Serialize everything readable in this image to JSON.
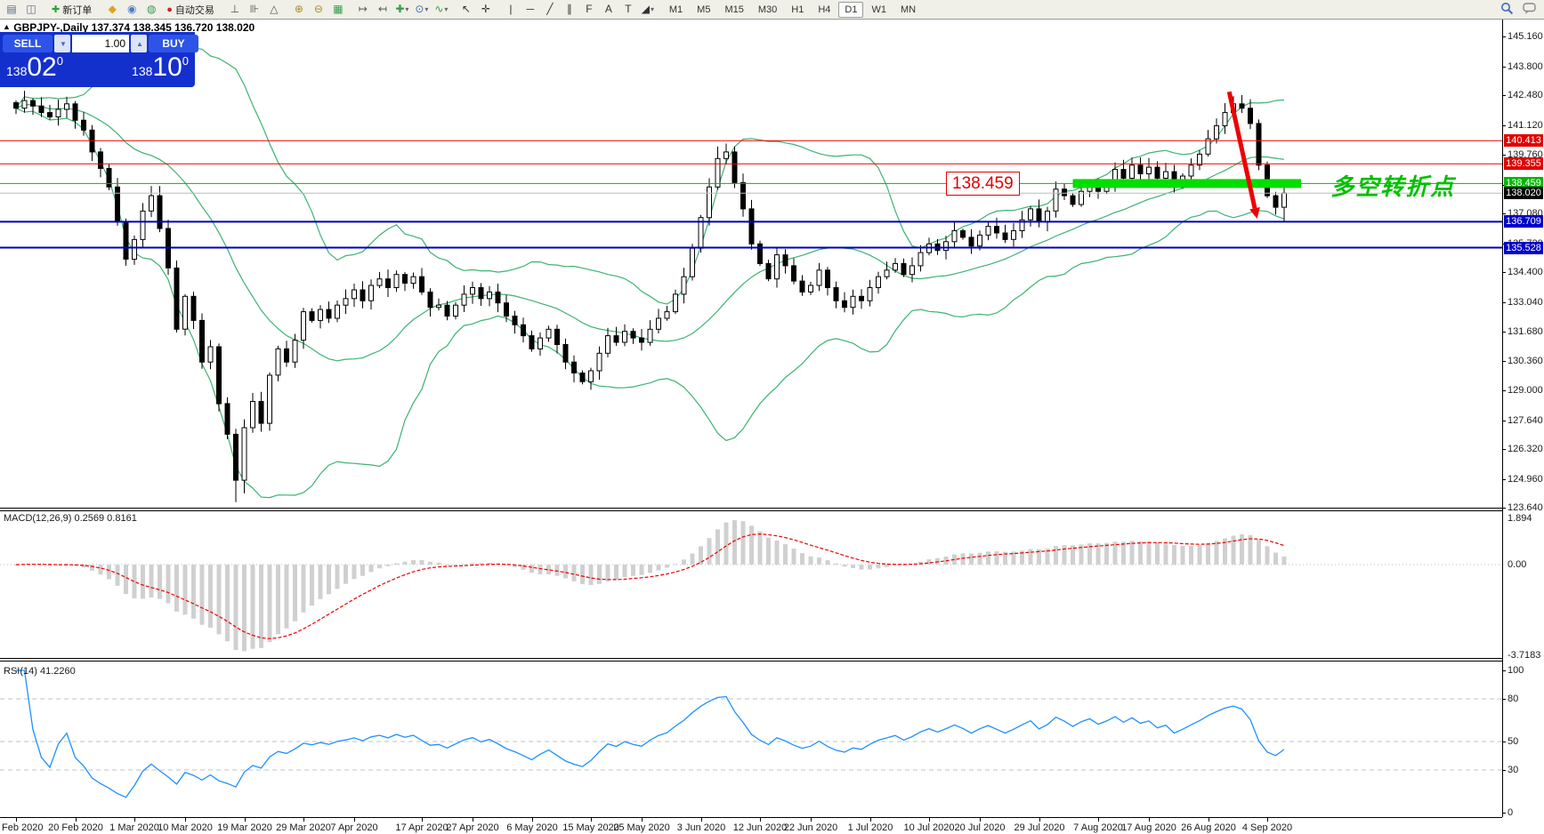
{
  "toolbar": {
    "new_order": "新订单",
    "autotrading": "自动交易",
    "timeframes": [
      "M1",
      "M5",
      "M15",
      "M30",
      "H1",
      "H4",
      "D1",
      "W1",
      "MN"
    ],
    "active_timeframe": "D1",
    "items": [
      {
        "t": "icon",
        "n": "chart-window-icon",
        "g": "▤",
        "c": "#5a6a8a"
      },
      {
        "t": "icon",
        "n": "profile-search-icon",
        "g": "◫",
        "c": "#5a6a8a"
      },
      {
        "t": "sep"
      },
      {
        "t": "btn",
        "n": "new-order-button",
        "key": "new_order",
        "g": "✚",
        "gc": "#2f9e44"
      },
      {
        "t": "sep"
      },
      {
        "t": "icon",
        "n": "market-watch-icon",
        "g": "◆",
        "c": "#d9a520"
      },
      {
        "t": "icon",
        "n": "navigator-icon",
        "g": "◉",
        "c": "#4a7dc9"
      },
      {
        "t": "icon",
        "n": "terminal-icon",
        "g": "◍",
        "c": "#3a9c4f"
      },
      {
        "t": "btn",
        "n": "autotrading-button",
        "key": "autotrading",
        "g": "●",
        "gc": "#cc2222"
      },
      {
        "t": "sep"
      },
      {
        "t": "icon",
        "n": "bar-chart-icon",
        "g": "⊥",
        "c": "#555"
      },
      {
        "t": "icon",
        "n": "candlestick-chart-icon",
        "g": "⊪",
        "c": "#555"
      },
      {
        "t": "icon",
        "n": "line-chart-icon",
        "g": "△",
        "c": "#555"
      },
      {
        "t": "sep"
      },
      {
        "t": "icon",
        "n": "zoom-in-icon",
        "g": "⊕",
        "c": "#b08a20"
      },
      {
        "t": "icon",
        "n": "zoom-out-icon",
        "g": "⊖",
        "c": "#b08a20"
      },
      {
        "t": "icon",
        "n": "tile-windows-icon",
        "g": "▦",
        "c": "#3a9c4f"
      },
      {
        "t": "sep"
      },
      {
        "t": "icon",
        "n": "auto-scroll-icon",
        "g": "↦",
        "c": "#555"
      },
      {
        "t": "icon",
        "n": "chart-shift-icon",
        "g": "↤",
        "c": "#555"
      },
      {
        "t": "icon",
        "n": "add-indicator-icon",
        "g": "✚",
        "c": "#2f9e44",
        "caret": true
      },
      {
        "t": "icon",
        "n": "period-icon",
        "g": "⊙",
        "c": "#3a6abf",
        "caret": true
      },
      {
        "t": "icon",
        "n": "template-icon",
        "g": "∿",
        "c": "#3a9c4f",
        "caret": true
      },
      {
        "t": "sep"
      },
      {
        "t": "icon",
        "n": "cursor-icon",
        "g": "↖",
        "c": "#333"
      },
      {
        "t": "icon",
        "n": "crosshair-icon",
        "g": "✛",
        "c": "#333"
      },
      {
        "t": "sep"
      },
      {
        "t": "icon",
        "n": "vertical-line-icon",
        "g": "|",
        "c": "#333"
      },
      {
        "t": "icon",
        "n": "horizontal-line-icon",
        "g": "─",
        "c": "#333"
      },
      {
        "t": "icon",
        "n": "trendline-icon",
        "g": "╱",
        "c": "#333"
      },
      {
        "t": "icon",
        "n": "equidistant-channel-icon",
        "g": "∥",
        "c": "#333"
      },
      {
        "t": "icon",
        "n": "fibonacci-icon",
        "g": "F",
        "c": "#333"
      },
      {
        "t": "icon",
        "n": "text-icon",
        "g": "A",
        "c": "#333"
      },
      {
        "t": "icon",
        "n": "text-label-icon",
        "g": "T",
        "c": "#333"
      },
      {
        "t": "icon",
        "n": "arrows-icon",
        "g": "◢",
        "c": "#333",
        "caret": true
      },
      {
        "t": "sep"
      }
    ]
  },
  "trade_panel": {
    "sell_label": "SELL",
    "buy_label": "BUY",
    "volume": "1.00",
    "down_glyph": "▼",
    "up_glyph": "▲",
    "sell_price": {
      "prefix": "138",
      "main": "02",
      "sup": "0"
    },
    "buy_price": {
      "prefix": "138",
      "main": "10",
      "sup": "0"
    }
  },
  "chart_header": {
    "marker": "▲",
    "symbol": "GBPJPY-,Daily",
    "ohlc_text": "137.374 138.345 136.720 138.020"
  },
  "price_axis": {
    "ticks": [
      145.16,
      143.8,
      142.48,
      141.12,
      139.76,
      138.4,
      137.08,
      135.72,
      134.4,
      133.04,
      131.68,
      130.36,
      129.0,
      127.64,
      126.32,
      124.96,
      123.64
    ],
    "badges": [
      {
        "text": "140.413",
        "price": 140.413,
        "bg": "#e00000"
      },
      {
        "text": "139.355",
        "price": 139.355,
        "bg": "#e00000"
      },
      {
        "text": "138.459",
        "price": 138.459,
        "bg": "#00b800"
      },
      {
        "text": "138.020",
        "price": 138.02,
        "bg": "#000000"
      },
      {
        "text": "136.709",
        "price": 136.709,
        "bg": "#0000cc"
      },
      {
        "text": "135.528",
        "price": 135.528,
        "bg": "#0000cc"
      }
    ]
  },
  "indicator_labels": {
    "macd": "MACD(12,26,9) 0.2569 0.8161",
    "rsi": "RSI(14) 41.2260"
  },
  "chart_data": {
    "type": "candlestick",
    "symbol": "GBPJPY-",
    "timeframe": "Daily",
    "last_ohlc": {
      "open": "137.374",
      "high": "138.345",
      "low": "136.720",
      "close": "138.020"
    },
    "closes": [
      141.9,
      142.25,
      142.0,
      141.7,
      141.5,
      141.85,
      142.1,
      141.35,
      140.9,
      139.9,
      139.15,
      138.3,
      136.7,
      135.0,
      135.9,
      137.2,
      137.9,
      136.4,
      134.6,
      131.8,
      133.3,
      132.2,
      130.3,
      131.0,
      128.4,
      127.0,
      124.9,
      127.3,
      128.5,
      127.5,
      129.7,
      130.9,
      130.3,
      131.3,
      132.6,
      132.2,
      132.7,
      132.3,
      132.9,
      133.2,
      133.6,
      133.1,
      133.8,
      134.1,
      133.7,
      134.3,
      133.9,
      134.2,
      133.5,
      132.8,
      132.9,
      132.4,
      132.9,
      133.4,
      133.7,
      133.2,
      133.5,
      133.0,
      132.4,
      132.0,
      131.5,
      130.9,
      131.4,
      131.8,
      131.1,
      130.3,
      129.8,
      129.4,
      129.9,
      130.7,
      131.5,
      131.2,
      131.7,
      131.4,
      131.2,
      131.8,
      132.3,
      132.6,
      133.4,
      134.2,
      135.5,
      136.9,
      138.3,
      139.6,
      139.9,
      138.5,
      137.3,
      135.7,
      134.8,
      134.1,
      135.2,
      134.7,
      134.0,
      133.5,
      133.8,
      134.5,
      133.7,
      133.1,
      132.8,
      133.3,
      133.1,
      133.7,
      134.2,
      134.5,
      134.8,
      134.3,
      134.7,
      135.3,
      135.7,
      135.4,
      135.8,
      136.3,
      136.0,
      135.6,
      136.1,
      136.5,
      136.2,
      135.9,
      136.3,
      136.8,
      137.3,
      136.7,
      137.2,
      138.2,
      137.9,
      137.5,
      138.1,
      138.5,
      138.1,
      138.5,
      139.1,
      138.7,
      139.3,
      138.9,
      139.2,
      138.7,
      139.0,
      138.4,
      138.8,
      139.3,
      139.8,
      140.5,
      141.1,
      141.7,
      142.1,
      141.9,
      141.2,
      139.3,
      137.9,
      137.37,
      138.02
    ],
    "overrides": {
      "26": {
        "l": 123.9
      },
      "27": {
        "l": 124.3
      },
      "83": {
        "h": 140.15
      },
      "144": {
        "h": 142.45
      },
      "145": {
        "h": 142.5
      },
      "150": {
        "o": 137.374,
        "h": 138.345,
        "l": 136.72,
        "c": 138.02
      }
    },
    "date_ticks": [
      {
        "label": "11 Feb 2020",
        "i": 0
      },
      {
        "label": "20 Feb 2020",
        "i": 7
      },
      {
        "label": "1 Mar 2020",
        "i": 14
      },
      {
        "label": "10 Mar 2020",
        "i": 20
      },
      {
        "label": "19 Mar 2020",
        "i": 27
      },
      {
        "label": "29 Mar 2020",
        "i": 34
      },
      {
        "label": "7 Apr 2020",
        "i": 40
      },
      {
        "label": "17 Apr 2020",
        "i": 48
      },
      {
        "label": "27 Apr 2020",
        "i": 54
      },
      {
        "label": "6 May 2020",
        "i": 61
      },
      {
        "label": "15 May 2020",
        "i": 68
      },
      {
        "label": "25 May 2020",
        "i": 74
      },
      {
        "label": "3 Jun 2020",
        "i": 81
      },
      {
        "label": "12 Jun 2020",
        "i": 88
      },
      {
        "label": "22 Jun 2020",
        "i": 94
      },
      {
        "label": "1 Jul 2020",
        "i": 101
      },
      {
        "label": "10 Jul 2020",
        "i": 108
      },
      {
        "label": "20 Jul 2020",
        "i": 114
      },
      {
        "label": "29 Jul 2020",
        "i": 121
      },
      {
        "label": "7 Aug 2020",
        "i": 128
      },
      {
        "label": "17 Aug 2020",
        "i": 134
      },
      {
        "label": "26 Aug 2020",
        "i": 141
      },
      {
        "label": "4 Sep 2020",
        "i": 148
      }
    ],
    "bollinger": {
      "period": 20,
      "deviation": 2,
      "color": "#3cb371"
    },
    "hlines": [
      {
        "price": 140.413,
        "color": "#ee0000",
        "w": 1
      },
      {
        "price": 139.355,
        "color": "#ee0000",
        "w": 1
      },
      {
        "price": 138.459,
        "color": "#00b800",
        "w": 1
      },
      {
        "price": 138.02,
        "color": "#bbbbbb",
        "w": 1
      },
      {
        "price": 136.709,
        "color": "#0000bb",
        "w": 2
      },
      {
        "price": 135.528,
        "color": "#0000bb",
        "w": 2
      }
    ],
    "annotations": {
      "highlight_bar": {
        "from_index": 125,
        "to_index": 152,
        "price": 138.459,
        "color": "#00dd00",
        "thickness": 10
      },
      "arrow": {
        "from_index": 143.5,
        "from_price": 142.65,
        "to_index": 146.8,
        "to_price": 136.85,
        "color": "#ee0000",
        "width": 5
      },
      "price_callout": {
        "text": "138.459",
        "index": 110,
        "price": 138.459
      },
      "cn_label": {
        "text": "多空转折点",
        "index": 155.5,
        "price": 139.05
      }
    },
    "macd": {
      "fast": 12,
      "slow": 26,
      "signal": 9,
      "axis_max": 1.894,
      "axis_min": -3.7183,
      "axis_labels": [
        "1.894",
        "0.00",
        "-3.7183"
      ],
      "hist_color": "#d0d0d0",
      "signal_color": "#ee0000"
    },
    "rsi": {
      "period": 14,
      "levels": [
        80,
        50,
        30
      ],
      "axis_labels": [
        100,
        80,
        50,
        30,
        0
      ],
      "line_color": "#1e90ff",
      "level_color": "#c0c0c0"
    }
  }
}
